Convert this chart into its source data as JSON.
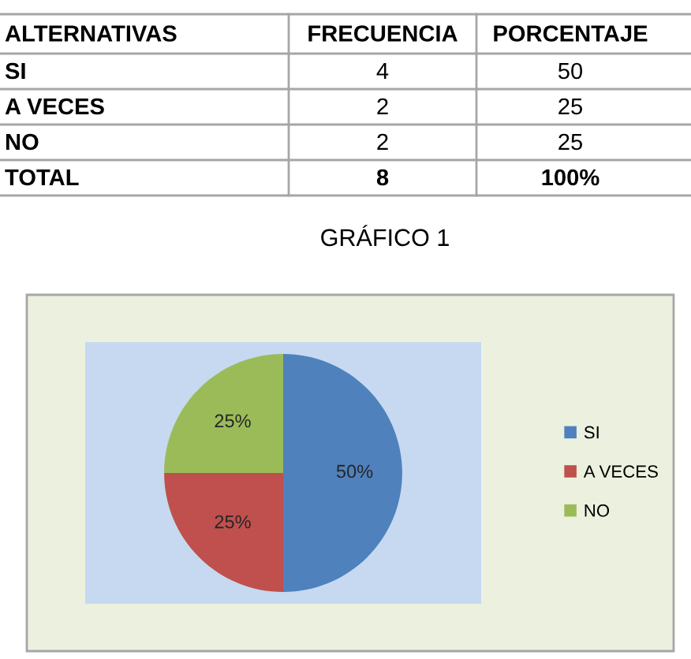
{
  "chart_data": [
    {
      "type": "other",
      "ylabel": "ALTERNATIVAS",
      "categories": [
        "SI",
        "A VECES",
        "NO",
        "TOTAL"
      ],
      "data_labels": true,
      "series": [
        {
          "name": "FRECUENCIA",
          "values": [
            4,
            2,
            2,
            8
          ]
        },
        {
          "name": "PORCENTAJE",
          "values": [
            50,
            25,
            25,
            100
          ],
          "value_labels": [
            "50",
            "25",
            "25",
            "100%"
          ]
        }
      ]
    },
    {
      "type": "pie",
      "title": "GRÁFICO 1",
      "categories": [
        "SI",
        "A VECES",
        "NO"
      ],
      "values": [
        50,
        25,
        25
      ],
      "colors": [
        "#4f81bd",
        "#c0504d",
        "#9bbb59"
      ],
      "value_labels": [
        "50%",
        "25%",
        "25%"
      ],
      "legend": "right"
    }
  ]
}
